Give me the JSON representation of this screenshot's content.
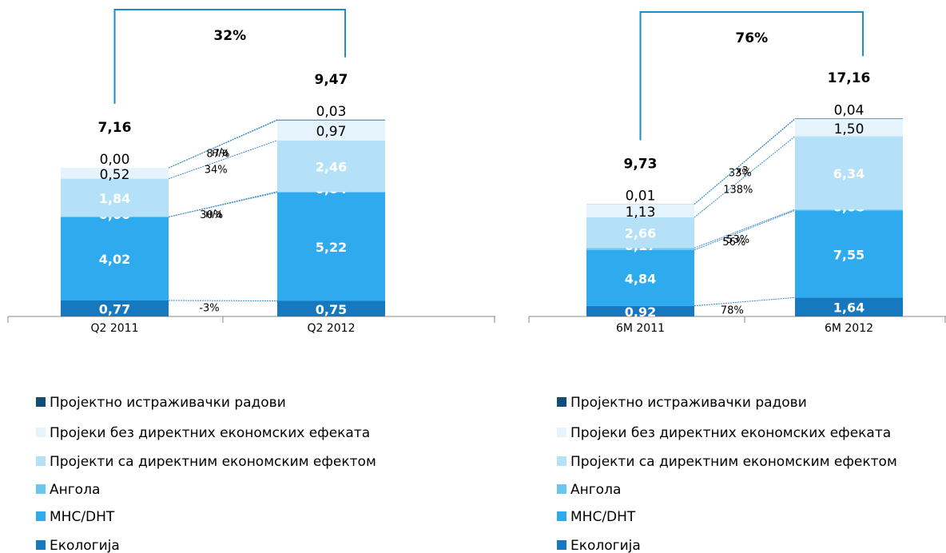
{
  "chart_data": [
    {
      "type": "stacked-bar",
      "categories": [
        "Q2 2011",
        "Q2 2012"
      ],
      "ylim": [
        0,
        14
      ],
      "growth": "32%",
      "totals": [
        7.16,
        9.47
      ],
      "total_labels": [
        "7,16",
        "9,47"
      ],
      "series": [
        {
          "name": "Екологија",
          "color": "#1679bf",
          "values": [
            0.77,
            0.75
          ],
          "value_labels": [
            "0,77",
            "0,75"
          ],
          "change": "-3%"
        },
        {
          "name": "МНС/DHT",
          "color": "#2eaaef",
          "values": [
            4.02,
            5.22
          ],
          "value_labels": [
            "4,02",
            "5,22"
          ],
          "change": "30%"
        },
        {
          "name": "Ангола",
          "color": "#6cc5f1",
          "values": [
            0.0,
            0.04
          ],
          "value_labels": [
            "0,00",
            "0,04"
          ],
          "change": "н/а"
        },
        {
          "name": "Пројекти са директним економским ефектом",
          "color": "#b5e1f8",
          "values": [
            1.84,
            2.46
          ],
          "value_labels": [
            "1,84",
            "2,46"
          ],
          "change": "34%"
        },
        {
          "name": "Пројеки без директних економских ефеката",
          "color": "#e4f3fc",
          "values": [
            0.52,
            0.97
          ],
          "value_labels": [
            "0,52",
            "0,97"
          ],
          "change": "87%"
        },
        {
          "name": "Пројектно истраживачки радови",
          "color": "#0e4e78",
          "values": [
            0.0,
            0.03
          ],
          "value_labels": [
            "0,00",
            "0,03"
          ],
          "change": "н/а"
        }
      ]
    },
    {
      "type": "stacked-bar",
      "categories": [
        "6M 2011",
        "6M 2012"
      ],
      "ylim": [
        0,
        25
      ],
      "growth": "76%",
      "totals": [
        9.73,
        17.16
      ],
      "total_labels": [
        "9,73",
        "17,16"
      ],
      "series": [
        {
          "name": "Екологија",
          "color": "#1679bf",
          "values": [
            0.92,
            1.64
          ],
          "value_labels": [
            "0,92",
            "1,64"
          ],
          "change": "78%"
        },
        {
          "name": "МНС/DHT",
          "color": "#2eaaef",
          "values": [
            4.84,
            7.55
          ],
          "value_labels": [
            "4,84",
            "7,55"
          ],
          "change": "56%"
        },
        {
          "name": "Ангола",
          "color": "#6cc5f1",
          "values": [
            0.17,
            0.08
          ],
          "value_labels": [
            "0,17",
            "0,08"
          ],
          "change": "-53%"
        },
        {
          "name": "Пројекти са директним економским ефектом",
          "color": "#b5e1f8",
          "values": [
            2.66,
            6.34
          ],
          "value_labels": [
            "2,66",
            "6,34"
          ],
          "change": "138%"
        },
        {
          "name": "Пројеки без директних економских ефеката",
          "color": "#e4f3fc",
          "values": [
            1.13,
            1.5
          ],
          "value_labels": [
            "1,13",
            "1,50"
          ],
          "change": "33%"
        },
        {
          "name": "Пројектно истраживачки радови",
          "color": "#0e4e78",
          "values": [
            0.01,
            0.04
          ],
          "value_labels": [
            "0,01",
            "0,04"
          ],
          "change": "x3"
        }
      ]
    }
  ]
}
